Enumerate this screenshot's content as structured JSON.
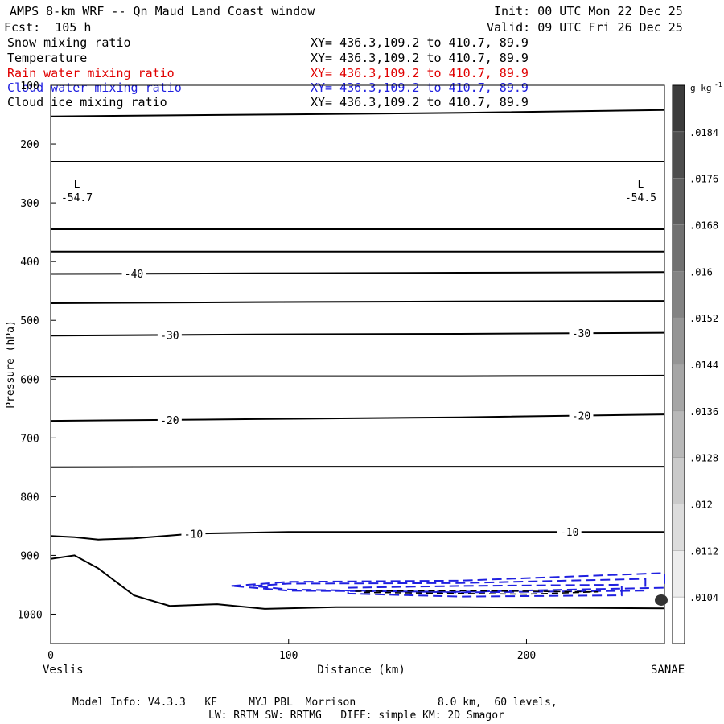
{
  "header": {
    "title": "AMPS 8-km WRF -- Qn Maud Land Coast window",
    "init": "Init: 00 UTC Mon 22 Dec 25",
    "fcst": "Fcst:  105 h",
    "valid": "Valid: 09 UTC Fri 26 Dec 25"
  },
  "legend_rows": [
    {
      "name": "Snow mixing ratio",
      "xy": "XY= 436.3,109.2 to 410.7, 89.9",
      "color": "#000000"
    },
    {
      "name": "Temperature",
      "xy": "XY= 436.3,109.2 to 410.7, 89.9",
      "color": "#000000"
    },
    {
      "name": "Rain water mixing ratio",
      "xy": "XY= 436.3,109.2 to 410.7, 89.9",
      "color": "#e00000"
    },
    {
      "name": "Cloud water mixing ratio",
      "xy": "XY= 436.3,109.2 to 410.7, 89.9",
      "color": "#2020e0"
    },
    {
      "name": "Cloud ice mixing ratio",
      "xy": "XY= 436.3,109.2 to 410.7, 89.9",
      "color": "#000000"
    }
  ],
  "chart_data": {
    "type": "cross-section contour",
    "ylabel": "Pressure (hPa)",
    "xlabel": "Distance (km)",
    "x_start_label": "Veslis",
    "x_end_label": "SANAE",
    "xlim": [
      0,
      258
    ],
    "ylim": [
      1050,
      100
    ],
    "x_ticks": [
      0,
      100,
      200
    ],
    "y_ticks": [
      100,
      200,
      300,
      400,
      500,
      600,
      700,
      800,
      900,
      1000
    ],
    "temperature_contours": [
      {
        "points": [
          [
            0,
            153
          ],
          [
            86,
            150
          ],
          [
            172,
            147
          ],
          [
            258,
            142
          ]
        ]
      },
      {
        "points": [
          [
            0,
            230
          ],
          [
            129,
            230
          ],
          [
            258,
            230
          ]
        ]
      },
      {
        "points": [
          [
            0,
            345
          ],
          [
            129,
            345
          ],
          [
            258,
            345
          ]
        ]
      },
      {
        "points": [
          [
            0,
            383
          ],
          [
            129,
            383
          ],
          [
            258,
            383
          ]
        ]
      },
      {
        "label": "-40",
        "label_x": 35,
        "points": [
          [
            0,
            421
          ],
          [
            86,
            420
          ],
          [
            172,
            419
          ],
          [
            258,
            418
          ]
        ]
      },
      {
        "points": [
          [
            0,
            471
          ],
          [
            86,
            469
          ],
          [
            172,
            468
          ],
          [
            258,
            467
          ]
        ]
      },
      {
        "label": "-30",
        "label_x": 50,
        "label_x2": 223,
        "points": [
          [
            0,
            526
          ],
          [
            86,
            524
          ],
          [
            172,
            523
          ],
          [
            258,
            521
          ]
        ]
      },
      {
        "points": [
          [
            0,
            596
          ],
          [
            86,
            595
          ],
          [
            172,
            595
          ],
          [
            258,
            594
          ]
        ]
      },
      {
        "label": "-20",
        "label_x": 50,
        "label_x2": 223,
        "points": [
          [
            0,
            671
          ],
          [
            86,
            668
          ],
          [
            172,
            665
          ],
          [
            258,
            660
          ]
        ]
      },
      {
        "points": [
          [
            0,
            750
          ],
          [
            86,
            749
          ],
          [
            172,
            749
          ],
          [
            258,
            749
          ]
        ]
      },
      {
        "label": "-10",
        "label_x": 60,
        "label_x2": 218,
        "points": [
          [
            0,
            867
          ],
          [
            10,
            869
          ],
          [
            20,
            873
          ],
          [
            35,
            871
          ],
          [
            60,
            863
          ],
          [
            100,
            860
          ],
          [
            172,
            860
          ],
          [
            258,
            860
          ]
        ]
      },
      {
        "points": [
          [
            0,
            906
          ],
          [
            10,
            900
          ],
          [
            20,
            922
          ],
          [
            35,
            968
          ],
          [
            50,
            986
          ],
          [
            70,
            983
          ],
          [
            90,
            991
          ],
          [
            120,
            988
          ],
          [
            172,
            988
          ],
          [
            258,
            990
          ]
        ]
      }
    ],
    "extrema": [
      {
        "type": "L",
        "value": "-54.7",
        "x": 11,
        "p": 285
      },
      {
        "type": "L",
        "value": "-54.5",
        "x": 248,
        "p": 285
      }
    ],
    "cloud_water_contours_dashed": [
      {
        "points": [
          [
            76,
            952
          ],
          [
            100,
            945
          ],
          [
            172,
            943
          ],
          [
            258,
            930
          ],
          [
            258,
            955
          ],
          [
            172,
            962
          ],
          [
            100,
            960
          ],
          [
            76,
            952
          ]
        ]
      },
      {
        "points": [
          [
            85,
            952
          ],
          [
            100,
            948
          ],
          [
            172,
            947
          ],
          [
            250,
            940
          ],
          [
            250,
            960
          ],
          [
            172,
            963
          ],
          [
            100,
            958
          ],
          [
            85,
            952
          ]
        ]
      },
      {
        "points": [
          [
            125,
            955
          ],
          [
            172,
            952
          ],
          [
            240,
            950
          ],
          [
            240,
            968
          ],
          [
            172,
            970
          ],
          [
            125,
            965
          ],
          [
            125,
            955
          ]
        ]
      }
    ],
    "cloud_ice_contours_dashed": [
      {
        "points": [
          [
            128,
            961
          ],
          [
            172,
            960
          ],
          [
            230,
            962
          ],
          [
            200,
            966
          ],
          [
            130,
            963
          ]
        ]
      }
    ],
    "colorbar": {
      "units": "g kg",
      "units_sup": "-1",
      "ticks": [
        ".0184",
        ".0176",
        ".0168",
        ".016",
        ".0152",
        ".0144",
        ".0136",
        ".0128",
        ".012",
        ".0112",
        ".0104"
      ]
    }
  },
  "footer": {
    "line1": "Model Info: V4.3.3   KF     MYJ PBL  Morrison             8.0 km,  60 levels,",
    "line2": "LW: RRTM SW: RRTMG   DIFF: simple KM: 2D Smagor"
  }
}
